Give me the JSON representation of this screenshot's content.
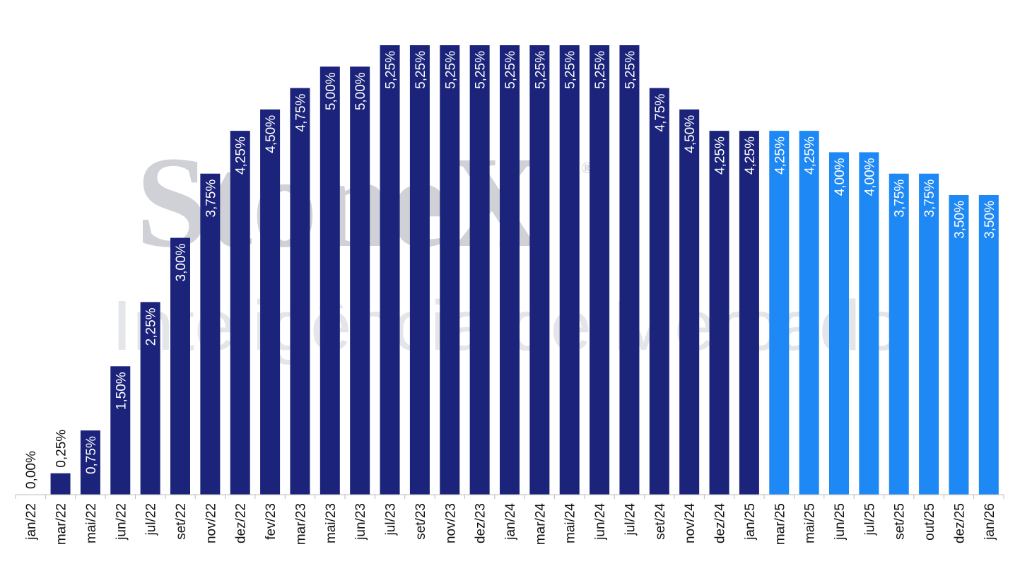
{
  "watermark": {
    "brand": "StoneX",
    "registered": "®",
    "subtitle": "Inteligência de Mercado"
  },
  "chart_data": {
    "type": "bar",
    "title": "",
    "xlabel": "",
    "ylabel": "",
    "ylim": [
      0,
      5.25
    ],
    "grid": false,
    "legend": "none",
    "categories": [
      "jan/22",
      "mar/22",
      "mai/22",
      "jun/22",
      "jul/22",
      "set/22",
      "nov/22",
      "dez/22",
      "fev/23",
      "mar/23",
      "mai/23",
      "jun/23",
      "jul/23",
      "set/23",
      "nov/23",
      "dez/23",
      "jan/24",
      "mar/24",
      "mai/24",
      "jun/24",
      "jul/24",
      "set/24",
      "nov/24",
      "dez/24",
      "jan/25",
      "mar/25",
      "mai/25",
      "jun/25",
      "jul/25",
      "set/25",
      "out/25",
      "dez/25",
      "jan/26"
    ],
    "values": [
      0.0,
      0.25,
      0.75,
      1.5,
      2.25,
      3.0,
      3.75,
      4.25,
      4.5,
      4.75,
      5.0,
      5.0,
      5.25,
      5.25,
      5.25,
      5.25,
      5.25,
      5.25,
      5.25,
      5.25,
      5.25,
      4.75,
      4.5,
      4.25,
      4.25,
      4.25,
      4.25,
      4.0,
      4.0,
      3.75,
      3.75,
      3.5,
      3.5
    ],
    "data_labels": [
      "0,00%",
      "0,25%",
      "0,75%",
      "1,50%",
      "2,25%",
      "3,00%",
      "3,75%",
      "4,25%",
      "4,50%",
      "4,75%",
      "5,00%",
      "5,00%",
      "5,25%",
      "5,25%",
      "5,25%",
      "5,25%",
      "5,25%",
      "5,25%",
      "5,25%",
      "5,25%",
      "5,25%",
      "4,75%",
      "4,50%",
      "4,25%",
      "4,25%",
      "4,25%",
      "4,25%",
      "4,00%",
      "4,00%",
      "3,75%",
      "3,75%",
      "3,50%",
      "3,50%"
    ],
    "colors": {
      "historical": "#1b237a",
      "projection": "#1e88f5",
      "projection_start_index": 25
    }
  }
}
